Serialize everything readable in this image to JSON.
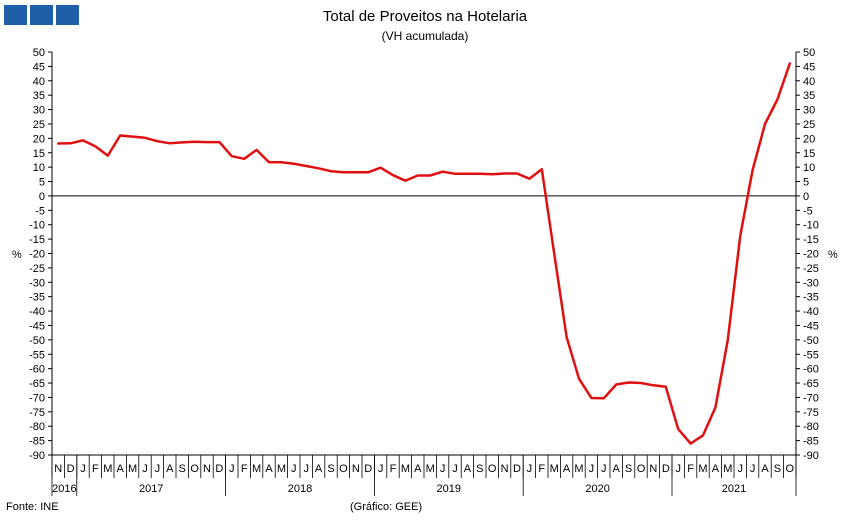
{
  "header": {
    "title": "Total de Proveitos na Hotelaria",
    "subtitle": "(VH acumulada)"
  },
  "footer": {
    "source": "Fonte: INE",
    "graphic_credit": "(Gráfico: GEE)"
  },
  "chart_data": {
    "type": "line",
    "title": "Total de Proveitos na Hotelaria",
    "subtitle": "(VH acumulada)",
    "ylabel_left": "%",
    "ylabel_right": "%",
    "ylim": [
      -90,
      50
    ],
    "y_ticks": [
      50,
      45,
      40,
      35,
      30,
      25,
      20,
      15,
      10,
      5,
      0,
      -5,
      -10,
      -15,
      -20,
      -25,
      -30,
      -35,
      -40,
      -45,
      -50,
      -55,
      -60,
      -65,
      -70,
      -75,
      -80,
      -85,
      -90
    ],
    "x_month_labels": [
      "N",
      "D",
      "J",
      "F",
      "M",
      "A",
      "M",
      "J",
      "J",
      "A",
      "S",
      "O",
      "N",
      "D",
      "J",
      "F",
      "M",
      "A",
      "M",
      "J",
      "J",
      "A",
      "S",
      "O",
      "N",
      "D",
      "J",
      "F",
      "M",
      "A",
      "M",
      "J",
      "J",
      "A",
      "S",
      "O",
      "N",
      "D",
      "J",
      "F",
      "M",
      "A",
      "M",
      "J",
      "J",
      "A",
      "S",
      "O",
      "N",
      "D",
      "J",
      "F",
      "M",
      "A",
      "M",
      "J",
      "J",
      "A",
      "S",
      "O"
    ],
    "x_year_labels": [
      "2016",
      "2017",
      "2018",
      "2019",
      "2020",
      "2021"
    ],
    "year_spans": [
      [
        0,
        1
      ],
      [
        2,
        13
      ],
      [
        14,
        25
      ],
      [
        26,
        37
      ],
      [
        38,
        49
      ],
      [
        50,
        59
      ]
    ],
    "grid": false,
    "legend": "none",
    "series": [
      {
        "color": "#e01010",
        "values": [
          18.2,
          18.3,
          19.3,
          17.2,
          14,
          21,
          20.6,
          20.2,
          19,
          18.3,
          18.6,
          18.8,
          18.7,
          18.7,
          13.8,
          12.9,
          16,
          11.7,
          11.7,
          11.2,
          10.4,
          9.6,
          8.6,
          8.2,
          8.2,
          8.2,
          9.8,
          7.2,
          5.3,
          7.1,
          7.1,
          8.4,
          7.7,
          7.7,
          7.7,
          7.5,
          7.8,
          7.8,
          6,
          9.3,
          -20,
          -49,
          -63.5,
          -70.2,
          -70.3,
          -65.5,
          -64.8,
          -65,
          -65.8,
          -66.3,
          -81,
          -86,
          -83.2,
          -73.5,
          -50,
          -14,
          9,
          25,
          33.5,
          46
        ]
      }
    ]
  }
}
